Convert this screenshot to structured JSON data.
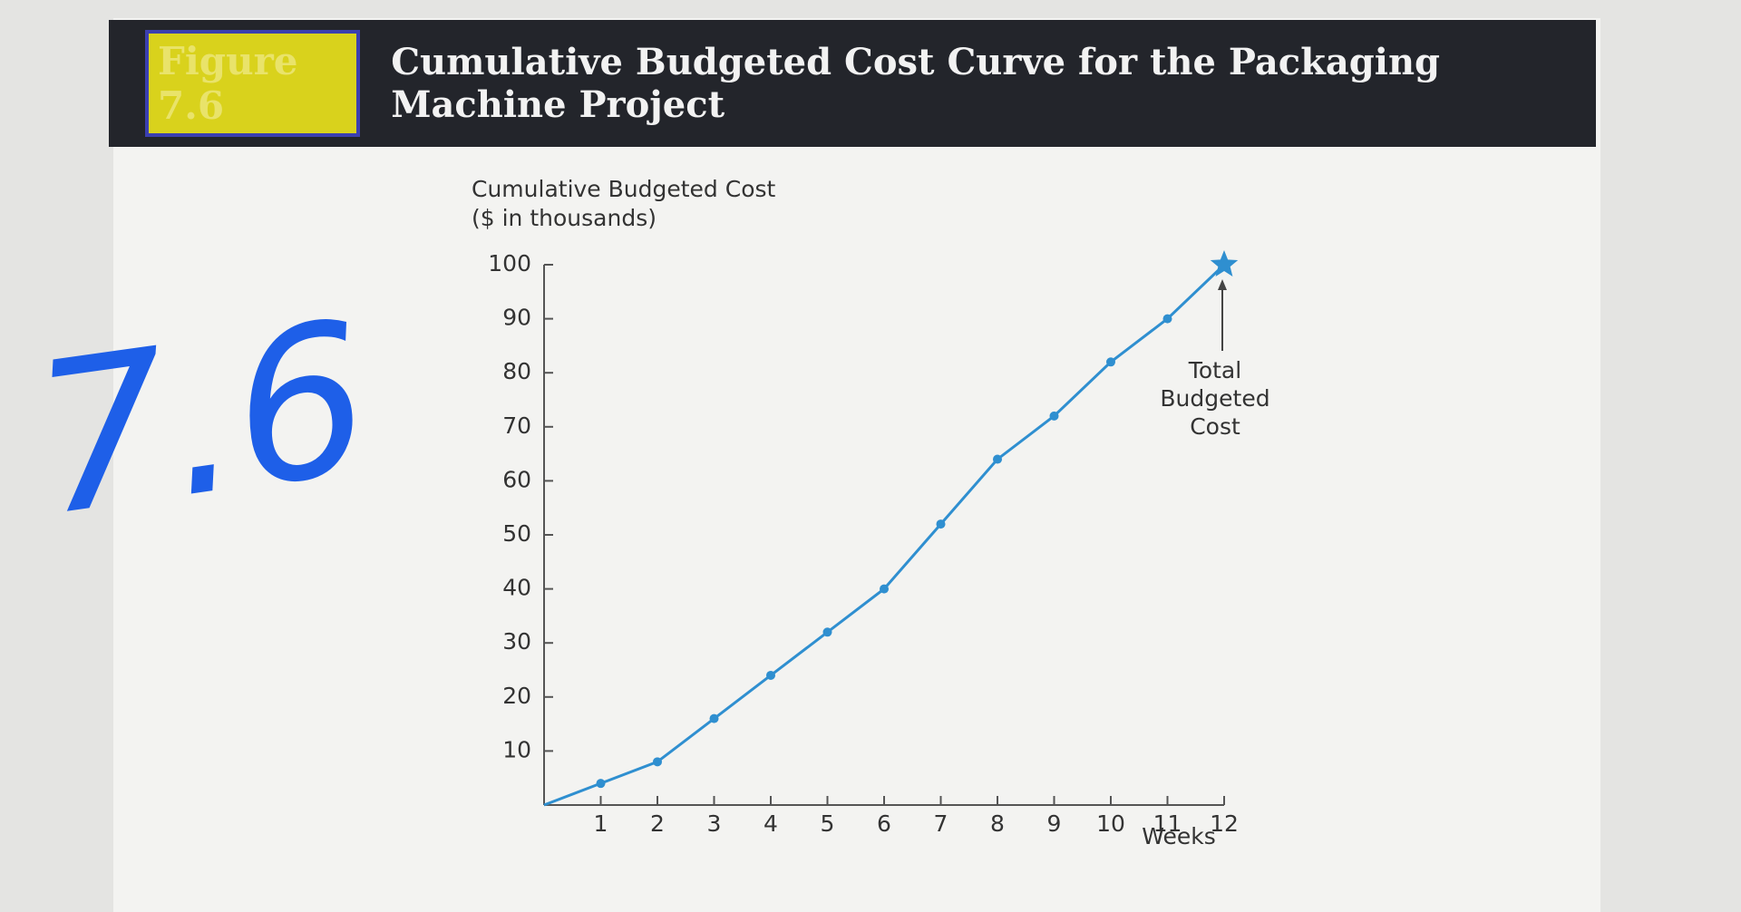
{
  "header": {
    "figure_label": "Figure 7.6",
    "title": "Cumulative Budgeted Cost Curve for the Packaging Machine Project"
  },
  "handwritten_note": "7.6",
  "chart_data": {
    "type": "line",
    "y_label": [
      "Cumulative Budgeted Cost",
      "($ in thousands)"
    ],
    "x_label": "Weeks",
    "x": [
      0,
      1,
      2,
      3,
      4,
      5,
      6,
      7,
      8,
      9,
      10,
      11,
      12
    ],
    "values": [
      0,
      4,
      8,
      16,
      24,
      32,
      40,
      52,
      64,
      72,
      82,
      90,
      100
    ],
    "color": "#2f8fd0",
    "xlim": [
      0,
      12
    ],
    "xticks": [
      1,
      2,
      3,
      4,
      5,
      6,
      7,
      8,
      9,
      10,
      11,
      12
    ],
    "ylim": [
      0,
      100
    ],
    "yticks": [
      10,
      20,
      30,
      40,
      50,
      60,
      70,
      80,
      90,
      100
    ],
    "grid": false,
    "annotation": {
      "text": [
        "Total",
        "Budgeted",
        "Cost"
      ]
    }
  }
}
